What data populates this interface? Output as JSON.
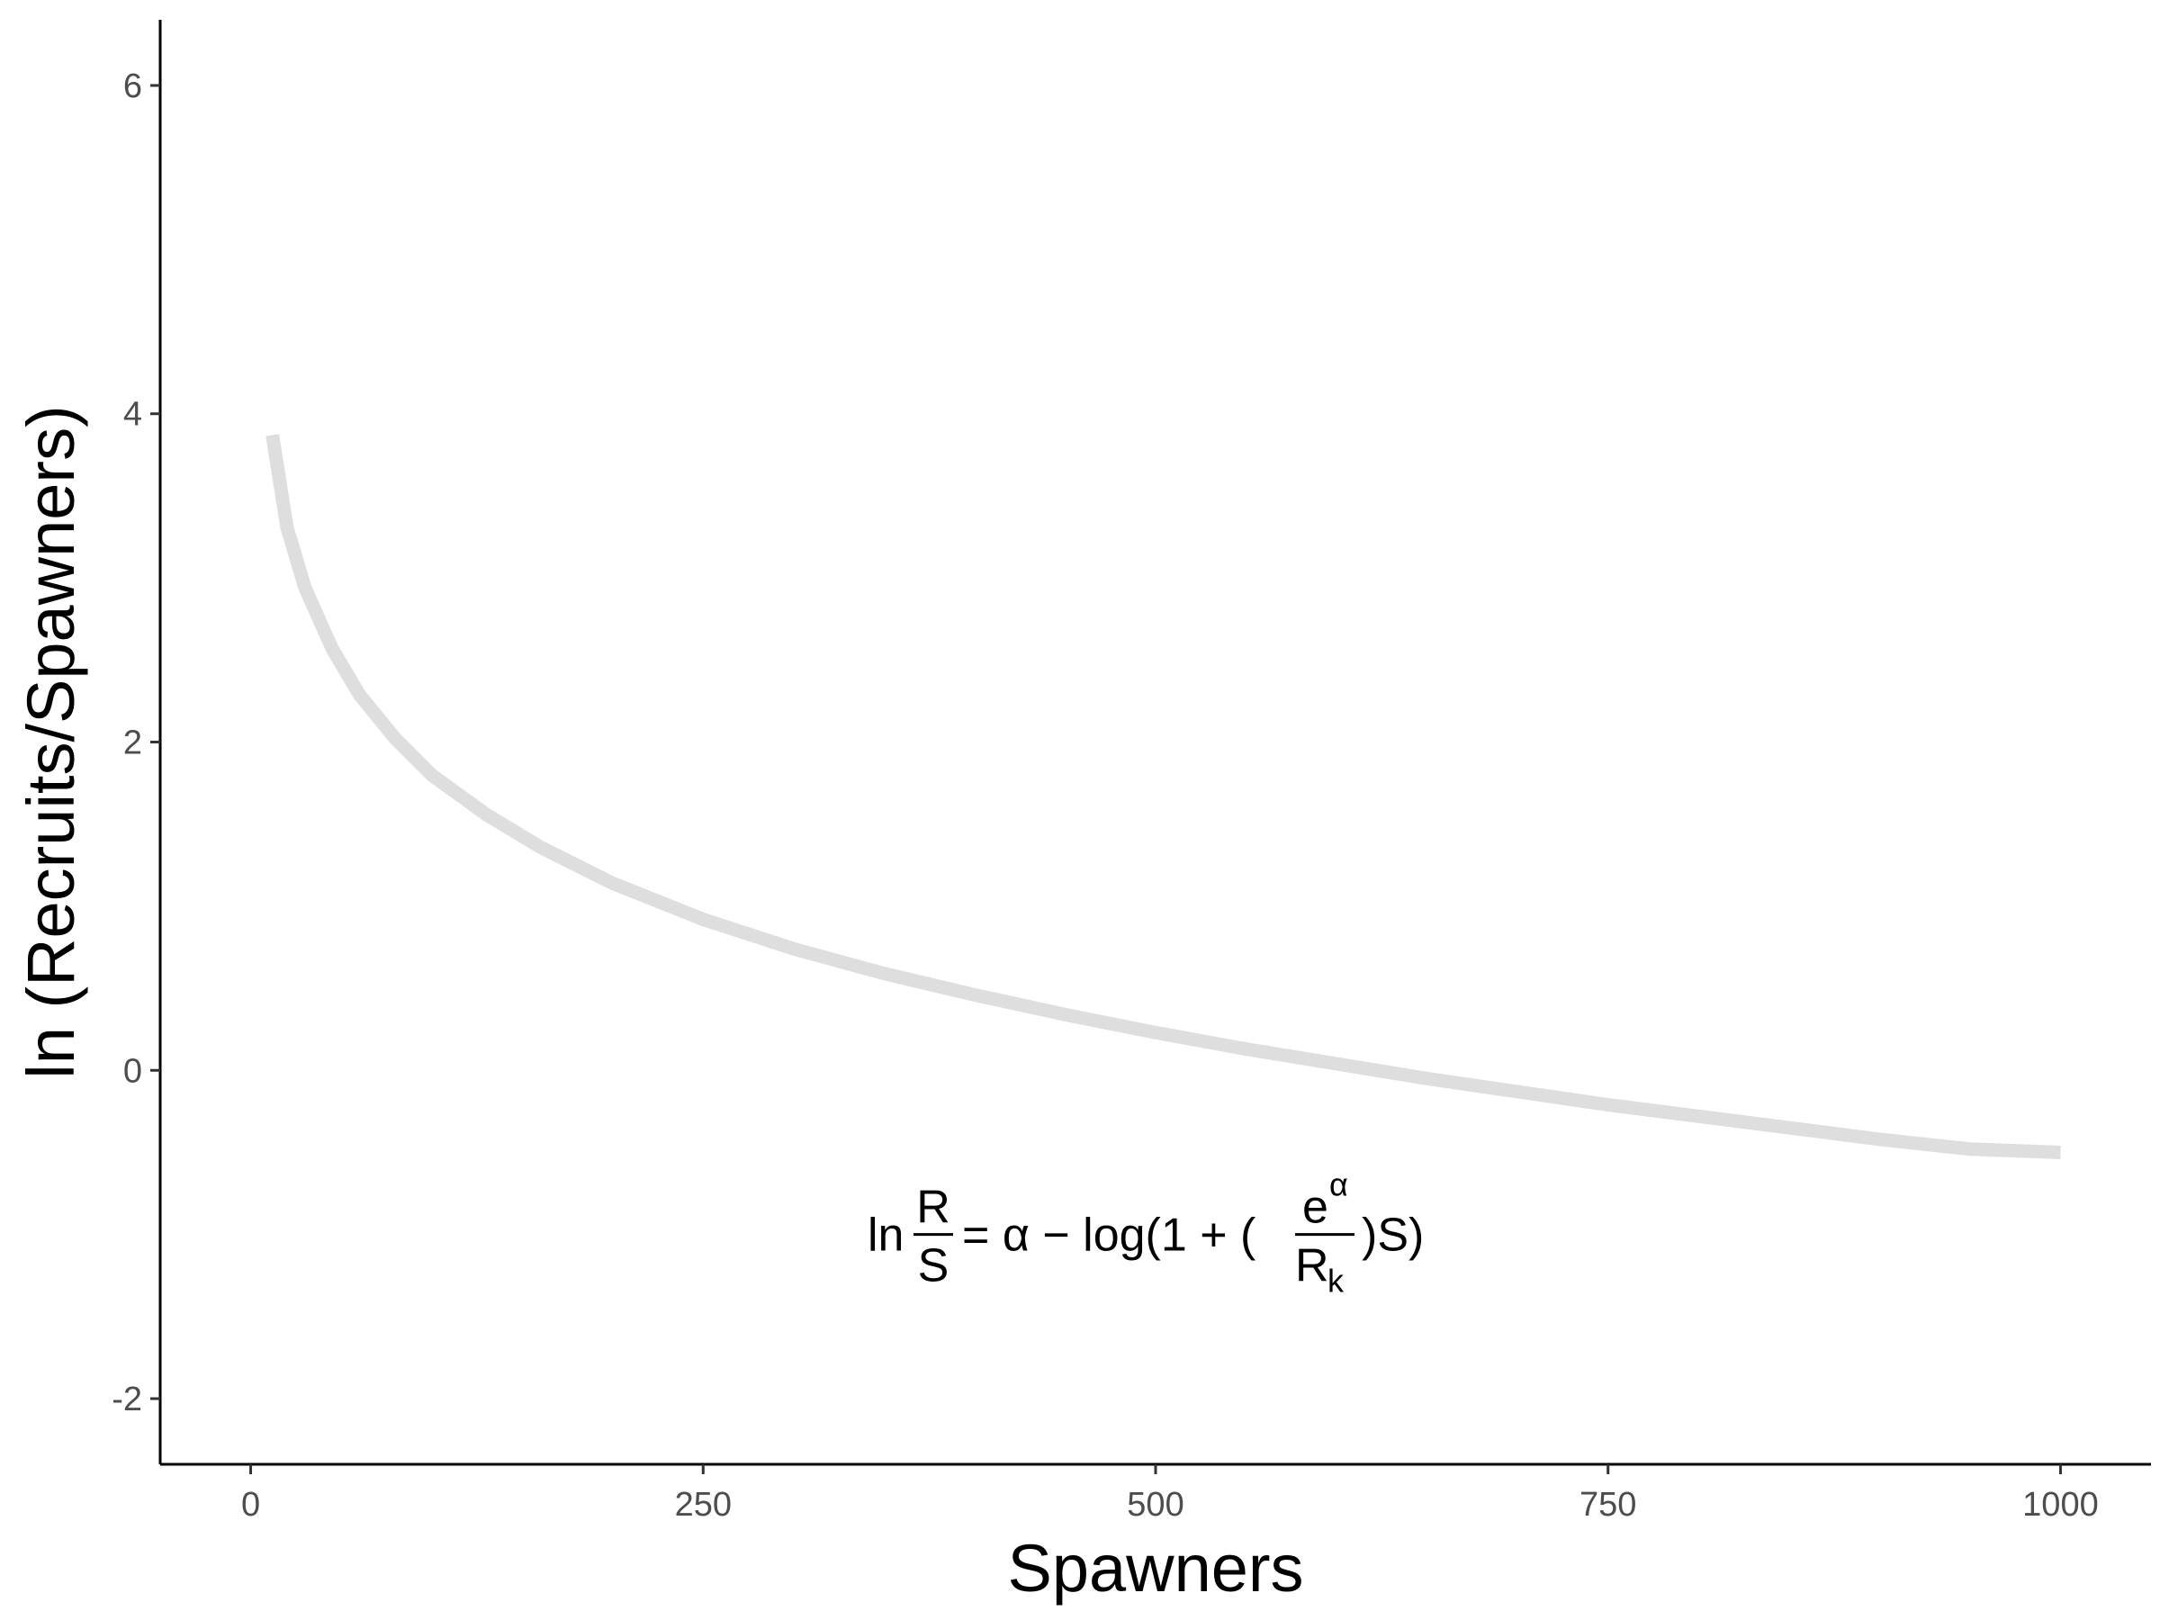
{
  "chart_data": {
    "type": "line",
    "title": "",
    "xlabel": "Spawners",
    "ylabel": "ln (Recruits/Spawners)",
    "xlim": [
      -50,
      1050
    ],
    "ylim": [
      -2.4,
      6.4
    ],
    "x_ticks": [
      0,
      250,
      500,
      750,
      1000
    ],
    "y_ticks": [
      -2,
      0,
      2,
      4,
      6
    ],
    "grid": false,
    "legend": "none",
    "line_color": "#dedede",
    "series": [
      {
        "x": [
          12,
          20,
          30,
          45,
          60,
          80,
          100,
          130,
          160,
          200,
          250,
          300,
          350,
          400,
          450,
          500,
          550,
          600,
          650,
          700,
          750,
          800,
          850,
          900,
          950,
          1000
        ],
        "y": [
          3.87,
          3.31,
          2.94,
          2.57,
          2.29,
          2.02,
          1.8,
          1.56,
          1.36,
          1.14,
          0.92,
          0.74,
          0.59,
          0.46,
          0.34,
          0.23,
          0.13,
          0.04,
          -0.05,
          -0.13,
          -0.21,
          -0.28,
          -0.35,
          -0.42,
          -0.48,
          -0.5
        ]
      }
    ],
    "annotation": {
      "prefix": "ln",
      "frac1_num": "R",
      "frac1_den": "S",
      "mid": "= α − log(1 + (",
      "frac2_num": "e",
      "frac2_sup": "α",
      "frac2_den": "R",
      "frac2_sub": "k",
      "suffix": ")S)",
      "x": 500,
      "y": -1.0
    }
  }
}
